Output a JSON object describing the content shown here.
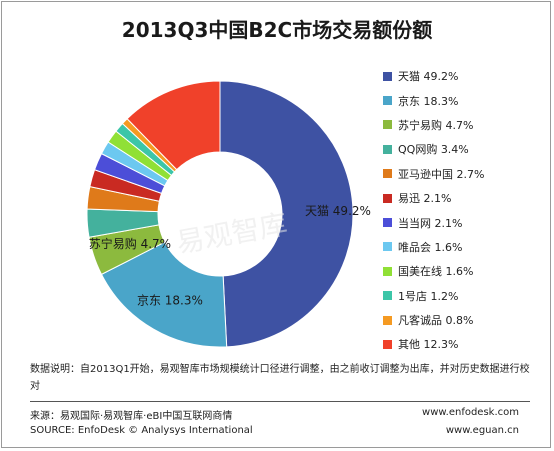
{
  "chart_data": {
    "type": "pie",
    "style": "donut",
    "title": "2013Q3中国B2C市场交易额份额",
    "slices": [
      {
        "label": "天猫",
        "value": 49.2,
        "legend": "天猫 49.2%",
        "data_label": "天猫 49.2%",
        "color": "#3e52a3"
      },
      {
        "label": "京东",
        "value": 18.3,
        "legend": "京东 18.3%",
        "data_label": "京东 18.3%",
        "color": "#4aa5c9"
      },
      {
        "label": "苏宁易购",
        "value": 4.7,
        "legend": "苏宁易购 4.7%",
        "data_label": "苏宁易购 4.7%",
        "color": "#8cba3e"
      },
      {
        "label": "QQ网购",
        "value": 3.4,
        "legend": "QQ网购 3.4%",
        "data_label": "",
        "color": "#44b19d"
      },
      {
        "label": "亚马逊中国",
        "value": 2.7,
        "legend": "亚马逊中国 2.7%",
        "data_label": "",
        "color": "#df7a1a"
      },
      {
        "label": "易迅",
        "value": 2.1,
        "legend": "易迅  2.1%",
        "data_label": "",
        "color": "#c92a22"
      },
      {
        "label": "当当网",
        "value": 2.1,
        "legend": "当当网 2.1%",
        "data_label": "",
        "color": "#4c4ed8"
      },
      {
        "label": "唯品会",
        "value": 1.6,
        "legend": "唯品会 1.6%",
        "data_label": "",
        "color": "#6cc8f0"
      },
      {
        "label": "国美在线",
        "value": 1.6,
        "legend": "国美在线 1.6%",
        "data_label": "",
        "color": "#90e036"
      },
      {
        "label": "1号店",
        "value": 1.2,
        "legend": "1号店 1.2%",
        "data_label": "",
        "color": "#3cc6a8"
      },
      {
        "label": "凡客诚品",
        "value": 0.8,
        "legend": "凡客诚品 0.8%",
        "data_label": "",
        "color": "#f59a22"
      },
      {
        "label": "其他",
        "value": 12.3,
        "legend": "其他 12.3%",
        "data_label": "",
        "color": "#f0412a"
      }
    ],
    "legend_position": "right"
  },
  "note": "数据说明：自2013Q1开始，易观智库市场规模统计口径进行调整，由之前收订调整为出库，并对历史数据进行校对",
  "source": {
    "cn": "来源：易观国际·易观智库·eBI中国互联网商情",
    "en": "SOURCE: EnfoDesk © Analysys International"
  },
  "urls": {
    "primary": "www.enfodesk.com",
    "secondary": "www.eguan.cn"
  },
  "watermark": "易观智库"
}
